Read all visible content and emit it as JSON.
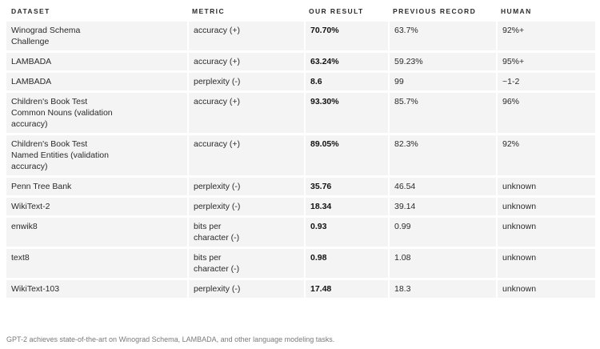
{
  "table": {
    "headers": {
      "dataset": "DATASET",
      "metric": "METRIC",
      "ours": "OUR RESULT",
      "previous": "PREVIOUS RECORD",
      "human": "HUMAN"
    },
    "rows": [
      {
        "dataset": "Winograd Schema Challenge",
        "metric": "accuracy (+)",
        "ours": "70.70%",
        "previous": "63.7%",
        "human": "92%+"
      },
      {
        "dataset": "LAMBADA",
        "metric": "accuracy (+)",
        "ours": "63.24%",
        "previous": "59.23%",
        "human": "95%+"
      },
      {
        "dataset": "LAMBADA",
        "metric": "perplexity (-)",
        "ours": "8.6",
        "previous": "99",
        "human": "~1-2"
      },
      {
        "dataset": "Children's Book Test Common Nouns (validation accuracy)",
        "metric": "accuracy (+)",
        "ours": "93.30%",
        "previous": "85.7%",
        "human": "96%"
      },
      {
        "dataset": "Children's Book Test Named Entities (validation accuracy)",
        "metric": "accuracy (+)",
        "ours": "89.05%",
        "previous": "82.3%",
        "human": "92%"
      },
      {
        "dataset": "Penn Tree Bank",
        "metric": "perplexity (-)",
        "ours": "35.76",
        "previous": "46.54",
        "human": "unknown"
      },
      {
        "dataset": "WikiText-2",
        "metric": "perplexity (-)",
        "ours": "18.34",
        "previous": "39.14",
        "human": "unknown"
      },
      {
        "dataset": "enwik8",
        "metric": "bits per character (-)",
        "ours": "0.93",
        "previous": "0.99",
        "human": "unknown"
      },
      {
        "dataset": "text8",
        "metric": "bits per character (-)",
        "ours": "0.98",
        "previous": "1.08",
        "human": "unknown"
      },
      {
        "dataset": "WikiText-103",
        "metric": "perplexity (-)",
        "ours": "17.48",
        "previous": "18.3",
        "human": "unknown"
      }
    ]
  },
  "caption": "GPT-2 achieves state-of-the-art on Winograd Schema, LAMBADA, and other language modeling tasks."
}
